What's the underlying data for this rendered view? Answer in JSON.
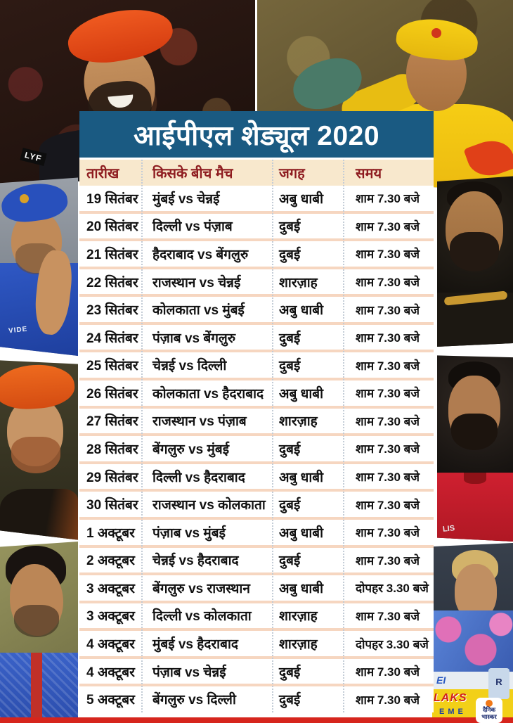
{
  "title": "आईपीएल शेड्यूल 2020",
  "table": {
    "columns": [
      "तारीख",
      "किसके बीच मैच",
      "जगह",
      "समय"
    ],
    "rows": [
      [
        "19 सितंबर",
        "मुंबई vs चेन्नई",
        "अबु धाबी",
        "शाम 7.30 बजे"
      ],
      [
        "20 सितंबर",
        "दिल्ली vs पंज़ाब",
        "दुबई",
        "शाम 7.30 बजे"
      ],
      [
        "21 सितंबर",
        "हैदराबाद vs बेंगलुरु",
        "दुबई",
        "शाम 7.30 बजे"
      ],
      [
        "22 सितंबर",
        "राजस्थान vs चेन्नई",
        "शारज़ाह",
        "शाम 7.30 बजे"
      ],
      [
        "23 सितंबर",
        "कोलकाता vs मुंबई",
        "अबु धाबी",
        "शाम 7.30 बजे"
      ],
      [
        "24 सितंबर",
        "पंज़ाब vs बेंगलुरु",
        "दुबई",
        "शाम 7.30 बजे"
      ],
      [
        "25 सितंबर",
        "चेन्नई vs दिल्ली",
        "दुबई",
        "शाम 7.30 बजे"
      ],
      [
        "26 सितंबर",
        "कोलकाता vs हैदराबाद",
        "अबु धाबी",
        "शाम 7.30 बजे"
      ],
      [
        "27 सितंबर",
        "राजस्थान vs पंज़ाब",
        "शारज़ाह",
        "शाम 7.30 बजे"
      ],
      [
        "28 सितंबर",
        "बेंगलुरु vs मुंबई",
        "दुबई",
        "शाम 7.30 बजे"
      ],
      [
        "29 सितंबर",
        "दिल्ली vs हैदराबाद",
        "अबु धाबी",
        "शाम 7.30 बजे"
      ],
      [
        "30 सितंबर",
        "राजस्थान vs कोलकाता",
        "दुबई",
        "शाम 7.30 बजे"
      ],
      [
        "1 अक्टूबर",
        "पंज़ाब vs मुंबई",
        "अबु धाबी",
        "शाम 7.30 बजे"
      ],
      [
        "2 अक्टूबर",
        "चेन्नई vs हैदराबाद",
        "दुबई",
        "शाम 7.30 बजे"
      ],
      [
        "3 अक्टूबर",
        "बेंगलुरु vs राजस्थान",
        "अबु धाबी",
        "दोपहर 3.30 बजे"
      ],
      [
        "3 अक्टूबर",
        "दिल्ली vs कोलकाता",
        "शारज़ाह",
        "शाम 7.30 बजे"
      ],
      [
        "4 अक्टूबर",
        "मुंबई vs हैदराबाद",
        "शारज़ाह",
        "दोपहर 3.30 बजे"
      ],
      [
        "4 अक्टूबर",
        "पंज़ाब vs चेन्नई",
        "दुबई",
        "शाम 7.30 बजे"
      ],
      [
        "5 अक्टूबर",
        "बेंगलुरु vs दिल्ली",
        "दुबई",
        "शाम 7.30 बजे"
      ]
    ]
  },
  "branding": {
    "publisher": "दैनिक भास्कर"
  },
  "photo_overlay_text": {
    "kohli_sleeve": "LYF",
    "rohit_jersey": "VIDE",
    "rahul_jersey": "LIS",
    "smith_board_top": "EI",
    "smith_board_mid": "LAKS",
    "smith_board_bottom": "EME"
  },
  "colors": {
    "title_band_blue": "#1a5a82",
    "header_row_cream": "#f8e8cd",
    "header_text_maroon": "#8e1c20",
    "row_separator_salmon": "#f6d6c0",
    "bottom_bar_red": "#d6251d"
  }
}
